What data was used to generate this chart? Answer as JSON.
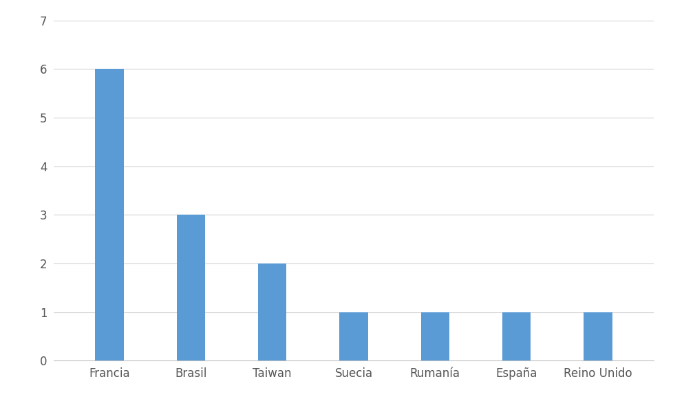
{
  "categories": [
    "Francia",
    "Brasil",
    "Taiwan",
    "Suecia",
    "Rumanía",
    "España",
    "Reino Unido"
  ],
  "values": [
    6,
    3,
    2,
    1,
    1,
    1,
    1
  ],
  "bar_color": "#5B9BD5",
  "ylim": [
    0,
    7
  ],
  "yticks": [
    0,
    1,
    2,
    3,
    4,
    5,
    6,
    7
  ],
  "background_color": "#ffffff",
  "grid_color": "#d3d3d3",
  "tick_fontsize": 12,
  "bar_width": 0.35,
  "figsize": [
    9.79,
    5.96
  ],
  "dpi": 100
}
